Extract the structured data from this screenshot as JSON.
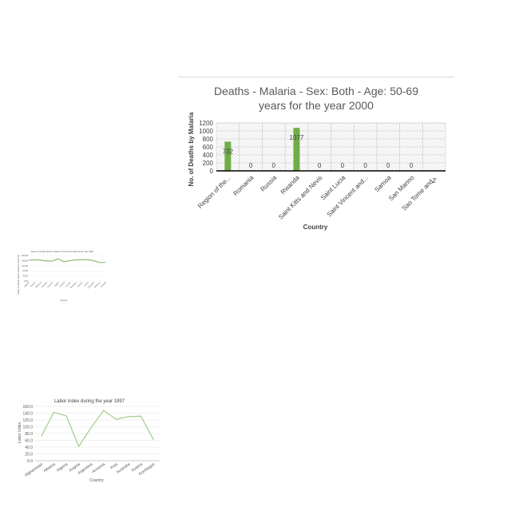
{
  "chart_data": [
    {
      "type": "bar",
      "title_line1": "Deaths - Malaria - Sex: Both - Age: 50-69",
      "title_line2": "years for the year 2000",
      "xlabel": "Country",
      "ylabel": "No. of Deaths by Malaria",
      "categories": [
        "Region of the...",
        "Romania",
        "Russia",
        "Rwanda",
        "Saint Kitts and Nevis",
        "Saint Lucia",
        "Saint Vincent and...",
        "Samoa",
        "San Marino",
        "Sao Tome and..."
      ],
      "values": [
        732,
        0,
        0,
        1077,
        0,
        0,
        0,
        0,
        0,
        2
      ],
      "data_labels": [
        "732",
        "0",
        "0",
        "1077",
        "0",
        "0",
        "0",
        "0",
        "0",
        "2"
      ],
      "ylim": [
        0,
        1200
      ],
      "yticks": [
        "0",
        "200",
        "400",
        "600",
        "800",
        "1000",
        "1200"
      ],
      "bar_color": "#70ad47",
      "grid": true,
      "grid_style": "hatched"
    },
    {
      "type": "line",
      "title": "Share of suicide DALYs related to food DCO 2024 Da the Year 1996",
      "xlabel": "Country",
      "ylabel": "Share of suicide DALYs related to food (%)",
      "categories": [
        "Algeria",
        "Austria",
        "Belarus",
        "Canada",
        "Czechia",
        "Egypt",
        "Finland",
        "France",
        "Germany",
        "Greece",
        "Latvia",
        "Lithuania",
        "Monaco",
        "Ukraine"
      ],
      "values": [
        163,
        167,
        164,
        157,
        156,
        174,
        150,
        160,
        166,
        168,
        168,
        160,
        144,
        146
      ],
      "ylim": [
        0,
        200
      ],
      "yticks": [
        "0.00",
        "40.00",
        "80.00",
        "120.00",
        "160.00",
        "200.00"
      ],
      "line_color": "#70ad47"
    },
    {
      "type": "line",
      "title": "Labor index during the year 1997",
      "xlabel": "Country",
      "ylabel": "Labor index",
      "categories": [
        "Afghanistan",
        "Albania",
        "Algeria",
        "Angola",
        "Argentina",
        "Armenia",
        "Asia",
        "Australia",
        "Austria",
        "Azerbaijan"
      ],
      "values": [
        72,
        143,
        132,
        42,
        98,
        148,
        122,
        130,
        131,
        62
      ],
      "ylim": [
        0,
        160
      ],
      "yticks": [
        "0.0",
        "20.0",
        "40.0",
        "60.0",
        "80.0",
        "100.0",
        "120.0",
        "140.0",
        "160.0"
      ],
      "line_color": "#a9d18e",
      "grid": true
    }
  ]
}
